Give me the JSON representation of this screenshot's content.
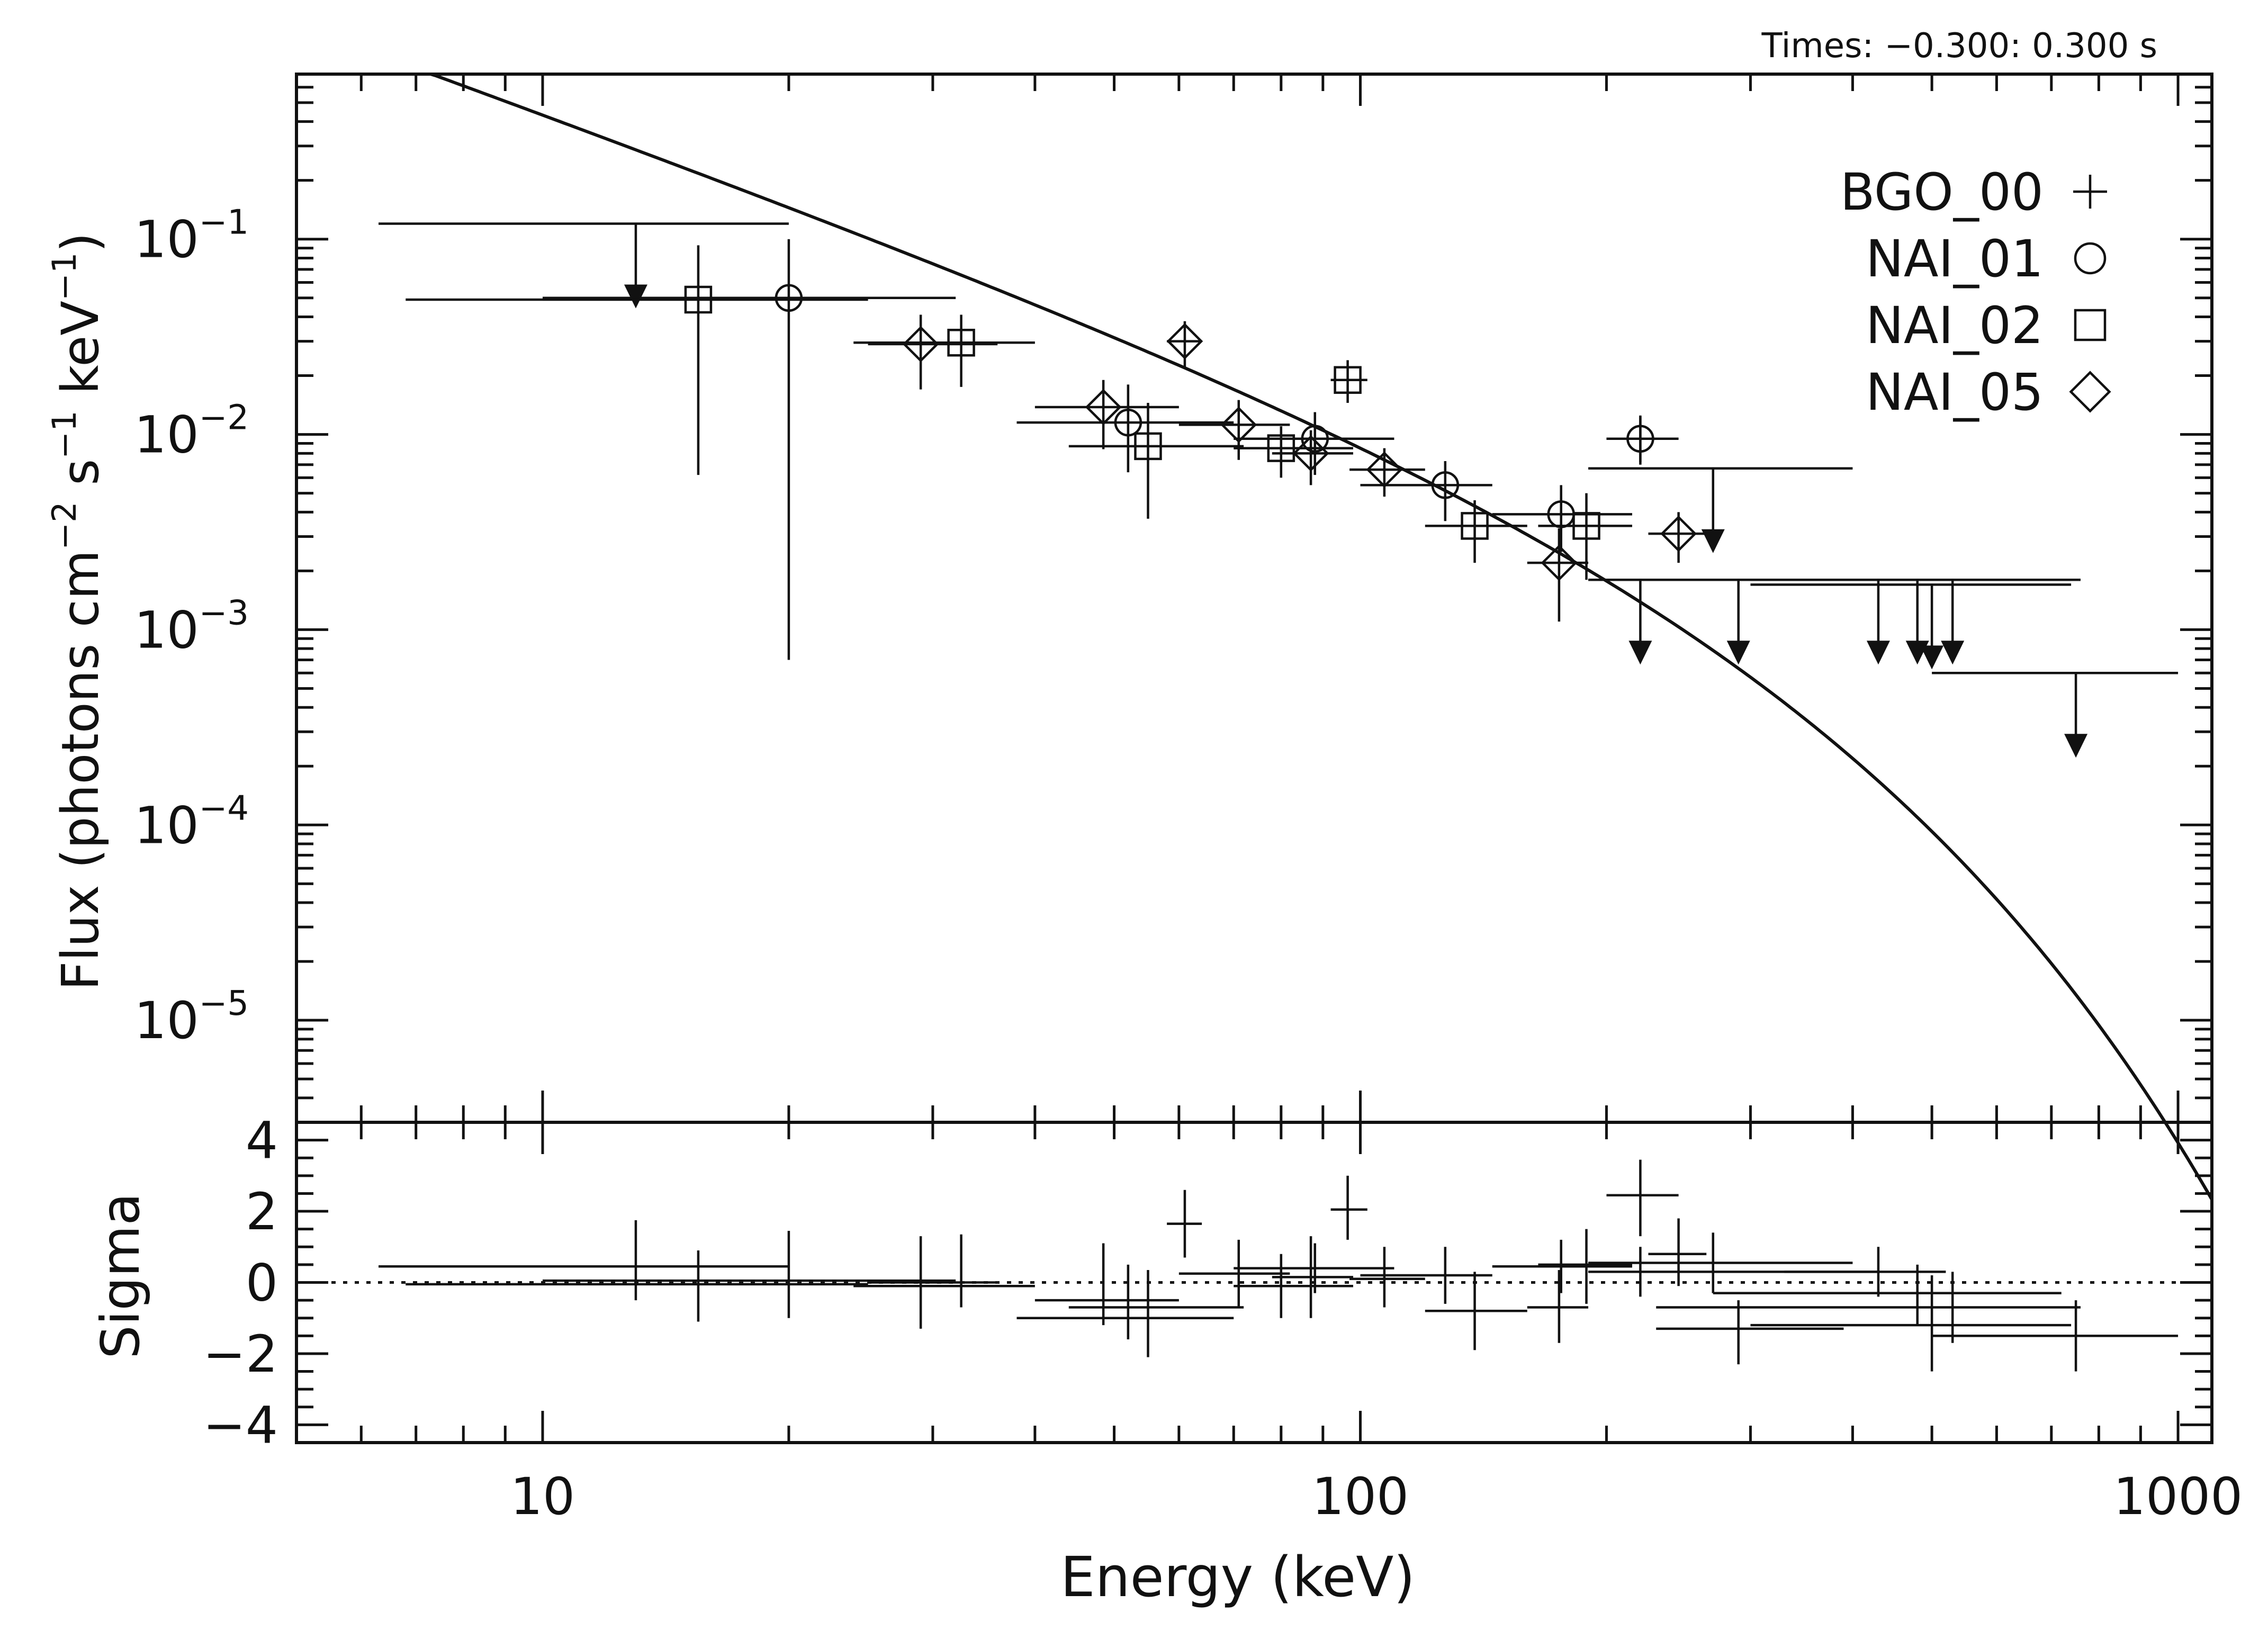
{
  "chart_data": [
    {
      "type": "scatter",
      "panel": "flux",
      "annotation": "Times: −0.300: 0.300 s",
      "ylabel": "Flux (photons cm⁻² s⁻¹ keV⁻¹)",
      "ylabel_parts": {
        "base": "Flux (photons cm",
        "exp1": "−2",
        "mid1": " s",
        "exp2": "−1",
        "mid2": " keV",
        "exp3": "−1",
        "end": ")"
      },
      "xscale": "log",
      "yscale": "log",
      "xlim": [
        5,
        1100
      ],
      "ylim": [
        3e-06,
        0.7
      ],
      "y_ticks": [
        {
          "value": 0.1,
          "base": "10",
          "exp": "−1"
        },
        {
          "value": 0.01,
          "base": "10",
          "exp": "−2"
        },
        {
          "value": 0.001,
          "base": "10",
          "exp": "−3"
        },
        {
          "value": 0.0001,
          "base": "10",
          "exp": "−4"
        },
        {
          "value": 1e-05,
          "base": "10",
          "exp": "−5"
        }
      ],
      "legend": {
        "position": "top-right",
        "entries": [
          {
            "label": "BGO_00",
            "symbol": "plus"
          },
          {
            "label": "NAI_01",
            "symbol": "circle"
          },
          {
            "label": "NAI_02",
            "symbol": "square"
          },
          {
            "label": "NAI_05",
            "symbol": "diamond"
          }
        ]
      },
      "model": {
        "form": "power law with exponential cutoff",
        "norm_at_100keV": 0.0085,
        "index": -1.5,
        "cutoff_keV": 190
      },
      "series": [
        {
          "name": "BGO_00",
          "symbol": "plus",
          "points": [
            {
              "x": 220,
              "xlo": 200,
              "xhi": 245,
              "y": 0.0095,
              "ylo": 0.007,
              "yhi": 0.0125
            }
          ],
          "upper_limits": [
            {
              "x": 220,
              "xlo": 190,
              "xhi": 430,
              "y": 0.0018
            },
            {
              "x": 290,
              "xlo": 200,
              "xhi": 750,
              "y": 0.0018
            },
            {
              "x": 430,
              "xlo": 230,
              "xhi": 700,
              "y": 0.0018
            },
            {
              "x": 480,
              "xlo": 270,
              "xhi": 720,
              "y": 0.0018
            },
            {
              "x": 500,
              "xlo": 300,
              "xhi": 740,
              "y": 0.0017
            },
            {
              "x": 530,
              "xlo": 340,
              "xhi": 760,
              "y": 0.0018
            },
            {
              "x": 750,
              "xlo": 500,
              "xhi": 1000,
              "y": 0.0006
            }
          ]
        },
        {
          "name": "NAI_01",
          "symbol": "circle",
          "points": [
            {
              "x": 20,
              "xlo": 10,
              "xhi": 32,
              "y": 0.05,
              "ylo": 0.0007,
              "yhi": 0.1
            },
            {
              "x": 52,
              "xlo": 38,
              "xhi": 70,
              "y": 0.0115,
              "ylo": 0.0064,
              "yhi": 0.018
            },
            {
              "x": 88,
              "xlo": 70,
              "xhi": 110,
              "y": 0.0095,
              "ylo": 0.0062,
              "yhi": 0.013
            },
            {
              "x": 127,
              "xlo": 100,
              "xhi": 145,
              "y": 0.0055,
              "ylo": 0.0036,
              "yhi": 0.0073
            },
            {
              "x": 176,
              "xlo": 145,
              "xhi": 215,
              "y": 0.0039,
              "ylo": 0.0025,
              "yhi": 0.0055
            },
            {
              "x": 220,
              "xlo": 200,
              "xhi": 240,
              "y": 0.0095,
              "ylo": 0.0072,
              "yhi": 0.0123
            }
          ],
          "upper_limits": [
            {
              "x": 13,
              "xlo": 6.3,
              "xhi": 20,
              "y": 0.12
            },
            {
              "x": 270,
              "xlo": 190,
              "xhi": 400,
              "y": 0.0067
            }
          ]
        },
        {
          "name": "NAI_02",
          "symbol": "square",
          "points": [
            {
              "x": 15.5,
              "xlo": 6.8,
              "xhi": 25,
              "y": 0.049,
              "ylo": 0.0062,
              "yhi": 0.093
            },
            {
              "x": 32.5,
              "xlo": 24,
              "xhi": 40,
              "y": 0.0295,
              "ylo": 0.0175,
              "yhi": 0.041
            },
            {
              "x": 55,
              "xlo": 44,
              "xhi": 72,
              "y": 0.0087,
              "ylo": 0.0037,
              "yhi": 0.0145
            },
            {
              "x": 80,
              "xlo": 70,
              "xhi": 98,
              "y": 0.0085,
              "ylo": 0.006,
              "yhi": 0.011
            },
            {
              "x": 96.5,
              "xlo": 92,
              "xhi": 102,
              "y": 0.019,
              "ylo": 0.0145,
              "yhi": 0.024
            },
            {
              "x": 138,
              "xlo": 120,
              "xhi": 160,
              "y": 0.0034,
              "ylo": 0.0022,
              "yhi": 0.0046
            },
            {
              "x": 189,
              "xlo": 165,
              "xhi": 215,
              "y": 0.0034,
              "ylo": 0.0018,
              "yhi": 0.005
            }
          ],
          "upper_limits": []
        },
        {
          "name": "NAI_05",
          "symbol": "diamond",
          "points": [
            {
              "x": 29,
              "xlo": 25,
              "xhi": 36,
              "y": 0.029,
              "ylo": 0.017,
              "yhi": 0.041
            },
            {
              "x": 48.5,
              "xlo": 40,
              "xhi": 60,
              "y": 0.0138,
              "ylo": 0.0084,
              "yhi": 0.019
            },
            {
              "x": 61,
              "xlo": 58,
              "xhi": 64,
              "y": 0.03,
              "ylo": 0.022,
              "yhi": 0.038
            },
            {
              "x": 71,
              "xlo": 60,
              "xhi": 82,
              "y": 0.0112,
              "ylo": 0.0074,
              "yhi": 0.015
            },
            {
              "x": 87,
              "xlo": 78,
              "xhi": 98,
              "y": 0.008,
              "ylo": 0.0055,
              "yhi": 0.0105
            },
            {
              "x": 107,
              "xlo": 97,
              "xhi": 120,
              "y": 0.0066,
              "ylo": 0.0048,
              "yhi": 0.0085
            },
            {
              "x": 175,
              "xlo": 160,
              "xhi": 190,
              "y": 0.0022,
              "ylo": 0.0011,
              "yhi": 0.0033
            },
            {
              "x": 245,
              "xlo": 225,
              "xhi": 265,
              "y": 0.0031,
              "ylo": 0.0022,
              "yhi": 0.004
            }
          ],
          "upper_limits": []
        }
      ]
    },
    {
      "type": "scatter",
      "panel": "residuals",
      "xlabel": "Energy (keV)",
      "ylabel": "Sigma",
      "xscale": "log",
      "xlim": [
        5,
        1100
      ],
      "ylim": [
        -4.5,
        4.5
      ],
      "x_ticks": [
        {
          "value": 10,
          "label": "10"
        },
        {
          "value": 100,
          "label": "100"
        },
        {
          "value": 1000,
          "label": "1000"
        }
      ],
      "y_ticks": [
        {
          "value": 4,
          "label": "4"
        },
        {
          "value": 2,
          "label": "2"
        },
        {
          "value": 0,
          "label": "0"
        },
        {
          "value": -2,
          "label": "−2"
        },
        {
          "value": -4,
          "label": "−4"
        }
      ],
      "zero_line": 0,
      "points": [
        {
          "x": 13,
          "xlo": 6.3,
          "xhi": 20,
          "y": 0.45,
          "ylo": -0.5,
          "yhi": 1.75
        },
        {
          "x": 15.5,
          "xlo": 6.8,
          "xhi": 25,
          "y": -0.05,
          "ylo": -1.1,
          "yhi": 0.9
        },
        {
          "x": 20,
          "xlo": 10,
          "xhi": 32,
          "y": 0.05,
          "ylo": -1.0,
          "yhi": 1.45
        },
        {
          "x": 29,
          "xlo": 25,
          "xhi": 36,
          "y": 0.0,
          "ylo": -1.3,
          "yhi": 1.3
        },
        {
          "x": 32.5,
          "xlo": 24,
          "xhi": 40,
          "y": -0.1,
          "ylo": -0.7,
          "yhi": 1.35
        },
        {
          "x": 48.5,
          "xlo": 40,
          "xhi": 60,
          "y": -0.5,
          "ylo": -1.2,
          "yhi": 1.1
        },
        {
          "x": 52,
          "xlo": 38,
          "xhi": 70,
          "y": -1.0,
          "ylo": -1.6,
          "yhi": 0.5
        },
        {
          "x": 55,
          "xlo": 44,
          "xhi": 72,
          "y": -0.7,
          "ylo": -2.1,
          "yhi": 0.35
        },
        {
          "x": 61,
          "xlo": 58,
          "xhi": 64,
          "y": 1.65,
          "ylo": 0.7,
          "yhi": 2.6
        },
        {
          "x": 71,
          "xlo": 60,
          "xhi": 82,
          "y": 0.25,
          "ylo": -0.7,
          "yhi": 1.2
        },
        {
          "x": 80,
          "xlo": 70,
          "xhi": 98,
          "y": -0.1,
          "ylo": -1.0,
          "yhi": 0.8
        },
        {
          "x": 87,
          "xlo": 78,
          "xhi": 98,
          "y": 0.15,
          "ylo": -1.0,
          "yhi": 1.3
        },
        {
          "x": 88,
          "xlo": 70,
          "xhi": 110,
          "y": 0.4,
          "ylo": -0.3,
          "yhi": 1.1
        },
        {
          "x": 96.5,
          "xlo": 92,
          "xhi": 102,
          "y": 2.05,
          "ylo": 1.2,
          "yhi": 3.0
        },
        {
          "x": 107,
          "xlo": 97,
          "xhi": 120,
          "y": 0.1,
          "ylo": -0.7,
          "yhi": 1.0
        },
        {
          "x": 127,
          "xlo": 100,
          "xhi": 145,
          "y": 0.2,
          "ylo": -0.6,
          "yhi": 1.0
        },
        {
          "x": 138,
          "xlo": 120,
          "xhi": 160,
          "y": -0.8,
          "ylo": -1.9,
          "yhi": 0.3
        },
        {
          "x": 176,
          "xlo": 145,
          "xhi": 215,
          "y": 0.45,
          "ylo": -0.3,
          "yhi": 1.2
        },
        {
          "x": 175,
          "xlo": 160,
          "xhi": 190,
          "y": -0.7,
          "ylo": -1.7,
          "yhi": 0.35
        },
        {
          "x": 189,
          "xlo": 165,
          "xhi": 215,
          "y": 0.5,
          "ylo": -0.6,
          "yhi": 1.5
        },
        {
          "x": 220,
          "xlo": 200,
          "xhi": 245,
          "y": 2.45,
          "ylo": 1.3,
          "yhi": 3.45
        },
        {
          "x": 220,
          "xlo": 190,
          "xhi": 430,
          "y": 0.3,
          "ylo": -0.4,
          "yhi": 1.0
        },
        {
          "x": 245,
          "xlo": 225,
          "xhi": 265,
          "y": 0.8,
          "ylo": -0.1,
          "yhi": 1.8
        },
        {
          "x": 270,
          "xlo": 190,
          "xhi": 400,
          "y": 0.55,
          "ylo": -0.3,
          "yhi": 1.4
        },
        {
          "x": 290,
          "xlo": 230,
          "xhi": 390,
          "y": -1.3,
          "ylo": -2.3,
          "yhi": -0.5
        },
        {
          "x": 430,
          "xlo": 330,
          "xhi": 520,
          "y": 0.3,
          "ylo": -0.4,
          "yhi": 1.0
        },
        {
          "x": 480,
          "xlo": 270,
          "xhi": 720,
          "y": -0.3,
          "ylo": -1.2,
          "yhi": 0.5
        },
        {
          "x": 500,
          "xlo": 300,
          "xhi": 740,
          "y": -1.2,
          "ylo": -2.5,
          "yhi": 0.2
        },
        {
          "x": 530,
          "xlo": 230,
          "xhi": 760,
          "y": -0.7,
          "ylo": -1.7,
          "yhi": 0.3
        },
        {
          "x": 750,
          "xlo": 500,
          "xhi": 1000,
          "y": -1.5,
          "ylo": -2.5,
          "yhi": -0.5
        }
      ]
    }
  ]
}
